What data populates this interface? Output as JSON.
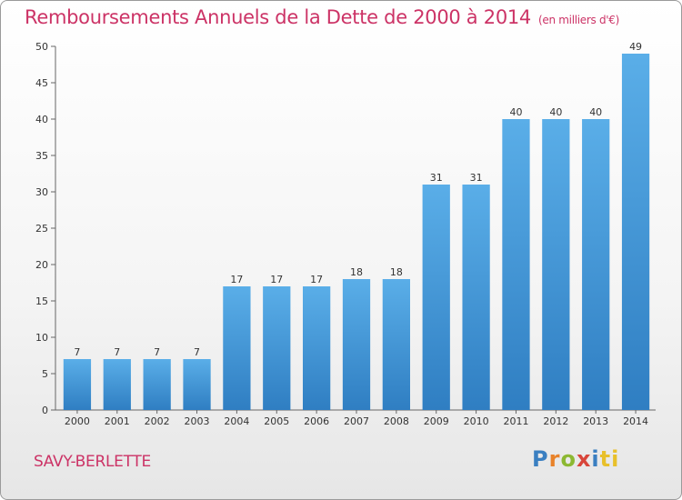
{
  "chart_data": {
    "type": "bar",
    "title": "Remboursements Annuels de la Dette de 2000 à 2014",
    "subtitle": "(en milliers d'€)",
    "categories": [
      "2000",
      "2001",
      "2002",
      "2003",
      "2004",
      "2005",
      "2006",
      "2007",
      "2008",
      "2009",
      "2010",
      "2011",
      "2012",
      "2013",
      "2014"
    ],
    "values": [
      7,
      7,
      7,
      7,
      17,
      17,
      17,
      18,
      18,
      31,
      31,
      40,
      40,
      40,
      49
    ],
    "ylim": [
      0,
      50
    ],
    "yticks": [
      0,
      5,
      10,
      15,
      20,
      25,
      30,
      35,
      40,
      45,
      50
    ],
    "xlabel": "",
    "ylabel": "",
    "grid": false,
    "bar_color": "#3d8fd6"
  },
  "footer": {
    "commune": "SAVY-BERLETTE",
    "logo_letters": [
      "P",
      "r",
      "o",
      "x",
      "i",
      "ti"
    ]
  }
}
